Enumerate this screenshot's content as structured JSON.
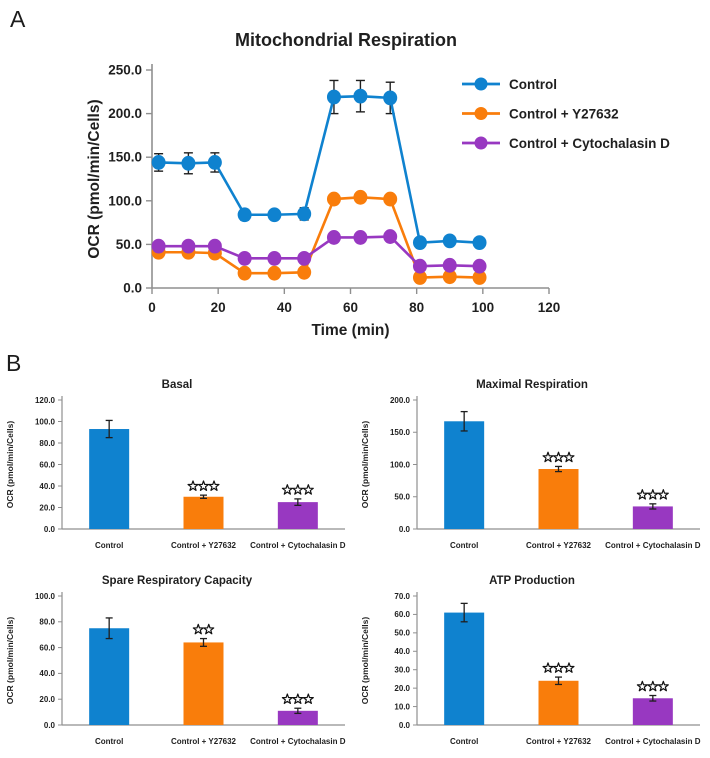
{
  "panelA": {
    "label": "A"
  },
  "panelB": {
    "label": "B"
  },
  "palette": {
    "control_blue": "#0F82CF",
    "y27632_orange": "#F97D0B",
    "cytochalasin_purple": "#9838C1",
    "error_bar_black": "#1f1f1f",
    "axis_gray": "#8f8f8f"
  },
  "chart_data": [
    {
      "id": "mitochondrial-respiration",
      "type": "line",
      "title": "Mitochondrial Respiration",
      "xlabel": "Time (min)",
      "ylabel": "OCR (pmol/min/Cells)",
      "xlim": [
        0,
        120
      ],
      "xticks": [
        0,
        20,
        40,
        60,
        80,
        100,
        120
      ],
      "ylim": [
        0,
        250
      ],
      "yticks": [
        0,
        50,
        100,
        150,
        200,
        250
      ],
      "ytick_format": "one_decimal",
      "grid": false,
      "legend_position": "inside-top-right",
      "x": [
        2,
        11,
        19,
        28,
        37,
        46,
        55,
        63,
        72,
        81,
        90,
        99
      ],
      "series": [
        {
          "name": "Control",
          "color": "#0F82CF",
          "values": [
            144,
            143,
            144,
            84,
            84,
            85,
            219,
            220,
            218,
            52,
            54,
            52
          ],
          "errors": [
            10,
            12,
            11,
            6,
            5,
            7,
            19,
            18,
            18,
            4,
            4,
            4
          ]
        },
        {
          "name": "Control + Y27632",
          "color": "#F97D0B",
          "values": [
            41,
            41,
            40,
            17,
            17,
            18,
            102,
            104,
            102,
            12,
            13,
            12
          ],
          "errors": [
            3,
            3,
            3,
            2,
            2,
            2,
            4,
            4,
            4,
            2,
            2,
            2
          ]
        },
        {
          "name": "Control + Cytochalasin D",
          "color": "#9838C1",
          "values": [
            48,
            48,
            48,
            34,
            34,
            34,
            58,
            58,
            59,
            25,
            26,
            25
          ],
          "errors": [
            3,
            3,
            3,
            2,
            2,
            2,
            3,
            3,
            3,
            2,
            2,
            2
          ]
        }
      ]
    },
    {
      "id": "basal",
      "type": "bar",
      "title": "Basal",
      "ylabel": "OCR (pmol/min/Cells)",
      "categories": [
        "Control",
        "Control + Y27632",
        "Control + Cytochalasin D"
      ],
      "colors": [
        "#0F82CF",
        "#F97D0B",
        "#9838C1"
      ],
      "values": [
        93,
        30,
        25
      ],
      "errors": [
        8,
        1.5,
        3
      ],
      "significance": [
        "",
        "***",
        "***"
      ],
      "ylim": [
        0,
        120
      ],
      "ytick_step": 20,
      "ytick_format": "one_decimal"
    },
    {
      "id": "maximal-respiration",
      "type": "bar",
      "title": "Maximal Respiration",
      "ylabel": "OCR (pmol/min/Cells)",
      "categories": [
        "Control",
        "Control + Y27632",
        "Control + Cytochalasin D"
      ],
      "colors": [
        "#0F82CF",
        "#F97D0B",
        "#9838C1"
      ],
      "values": [
        167,
        93,
        35
      ],
      "errors": [
        15,
        4,
        4
      ],
      "significance": [
        "",
        "***",
        "***"
      ],
      "ylim": [
        0,
        200
      ],
      "ytick_step": 50,
      "ytick_format": "one_decimal"
    },
    {
      "id": "spare-respiratory-capacity",
      "type": "bar",
      "title": "Spare Respiratory Capacity",
      "ylabel": "OCR (pmol/min/Cells)",
      "categories": [
        "Control",
        "Control + Y27632",
        "Control + Cytochalasin D"
      ],
      "colors": [
        "#0F82CF",
        "#F97D0B",
        "#9838C1"
      ],
      "values": [
        75,
        64,
        11
      ],
      "errors": [
        8,
        3,
        2
      ],
      "significance": [
        "",
        "**",
        "***"
      ],
      "ylim": [
        0,
        100
      ],
      "ytick_step": 20,
      "ytick_format": "one_decimal"
    },
    {
      "id": "atp-production",
      "type": "bar",
      "title": "ATP Production",
      "ylabel": "OCR (pmol/min/Cells)",
      "categories": [
        "Control",
        "Control + Y27632",
        "Control + Cytochalasin D"
      ],
      "colors": [
        "#0F82CF",
        "#F97D0B",
        "#9838C1"
      ],
      "values": [
        61,
        24,
        14.5
      ],
      "errors": [
        5,
        2,
        1.5
      ],
      "significance": [
        "",
        "***",
        "***"
      ],
      "ylim": [
        0,
        70
      ],
      "ytick_step": 10,
      "ytick_format": "one_decimal"
    }
  ]
}
